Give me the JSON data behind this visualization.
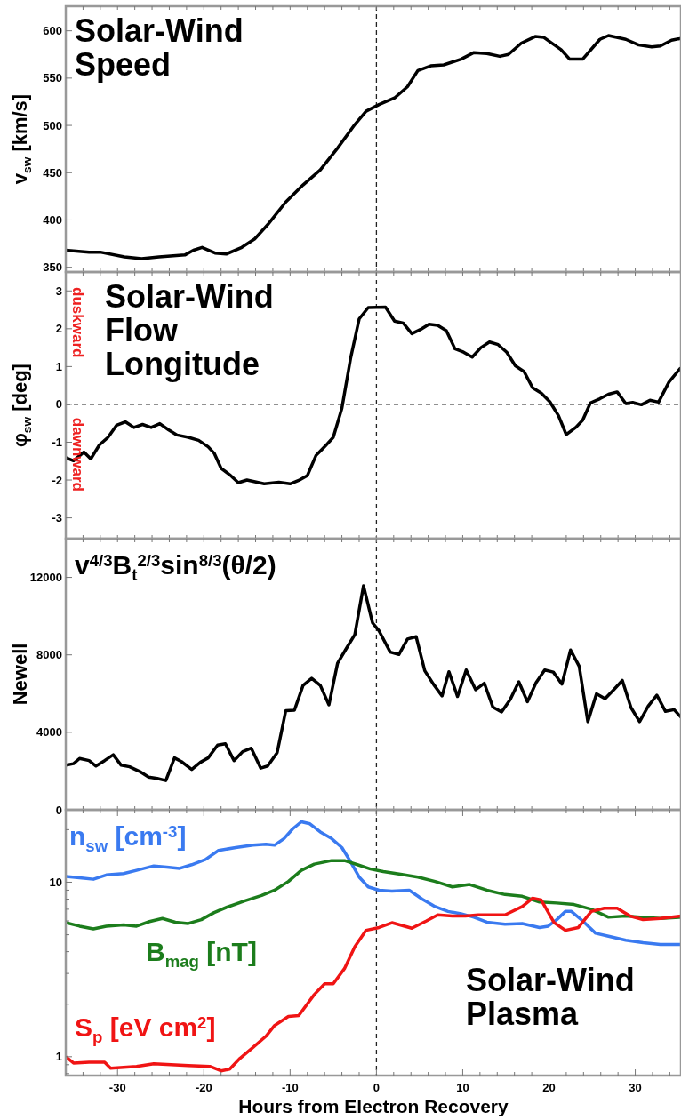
{
  "chart_data": [
    {
      "type": "line",
      "title": "Solar-Wind Speed",
      "ylabel": "v$_{sw}$ [km/s]",
      "tick_labels": "y",
      "xlim": [
        -36,
        35.3
      ],
      "ylim": [
        345,
        626
      ],
      "yticks": [
        350,
        400,
        450,
        500,
        550,
        600
      ],
      "xticks": [
        {
          "value": -34,
          "label": null
        },
        {
          "value": -32,
          "label": null
        },
        {
          "value": -30,
          "label": null
        },
        {
          "value": -28,
          "label": null
        },
        {
          "value": -26,
          "label": null
        },
        {
          "value": -24,
          "label": null
        },
        {
          "value": -22,
          "label": null
        },
        {
          "value": -20,
          "label": null
        },
        {
          "value": -18,
          "label": null
        },
        {
          "value": -16,
          "label": null
        },
        {
          "value": -14,
          "label": null
        },
        {
          "value": -12,
          "label": null
        },
        {
          "value": -10,
          "label": null
        },
        {
          "value": -8,
          "label": null
        },
        {
          "value": -6,
          "label": null
        },
        {
          "value": -4,
          "label": null
        },
        {
          "value": -2,
          "label": null
        },
        {
          "value": 0,
          "label": null
        },
        {
          "value": 2,
          "label": null
        },
        {
          "value": 4,
          "label": null
        },
        {
          "value": 6,
          "label": null
        },
        {
          "value": 8,
          "label": null
        },
        {
          "value": 10,
          "label": null
        },
        {
          "value": 12,
          "label": null
        },
        {
          "value": 14,
          "label": null
        },
        {
          "value": 16,
          "label": null
        },
        {
          "value": 18,
          "label": null
        },
        {
          "value": 20,
          "label": null
        },
        {
          "value": 22,
          "label": null
        },
        {
          "value": 24,
          "label": null
        },
        {
          "value": 26,
          "label": null
        },
        {
          "value": 28,
          "label": null
        },
        {
          "value": 30,
          "label": null
        },
        {
          "value": 32,
          "label": null
        },
        {
          "value": 34,
          "label": null
        }
      ],
      "ref_lines": [
        {
          "axis": "x",
          "value": 0,
          "line_style": "dashed"
        }
      ],
      "series": [
        {
          "color": "#000000",
          "x": [
            -36,
            -33.3,
            -32,
            -29.2,
            -27.2,
            -25.2,
            -22.2,
            -21.2,
            -20.2,
            -18.7,
            -17.4,
            -15.6,
            -14.1,
            -12.6,
            -10.5,
            -8.5,
            -6.5,
            -4.5,
            -2.5,
            -1.2,
            0.3,
            2.1,
            3.6,
            4.8,
            6.3,
            7.8,
            9.8,
            11.3,
            12.8,
            14.3,
            15.3,
            16.8,
            18.4,
            19.4,
            21.4,
            22.4,
            23.9,
            25.9,
            26.9,
            28.9,
            30.4,
            31.9,
            32.9,
            34.2,
            35.3
          ],
          "values": [
            368,
            366,
            366,
            361,
            359,
            361,
            363,
            368,
            371,
            365,
            364,
            371,
            380,
            395,
            419,
            437,
            453,
            476,
            501,
            515,
            522,
            529,
            541,
            558,
            563,
            564,
            570,
            577,
            576,
            573,
            575,
            587,
            594,
            593,
            580,
            570,
            570,
            591,
            595,
            591,
            585,
            583,
            584,
            590,
            592
          ]
        }
      ]
    },
    {
      "type": "line",
      "title": "Solar-Wind Flow Longitude",
      "ylabel": "φ$_{sw}$ [deg]",
      "annotations": [
        "duskward",
        "dawnward"
      ],
      "tick_labels": "y",
      "xlim": [
        -36,
        35.3
      ],
      "ylim": [
        -3.55,
        3.5
      ],
      "yticks": [
        -3,
        -2,
        -1,
        0,
        1,
        2,
        3
      ],
      "xticks": [
        {
          "value": -34,
          "label": null
        },
        {
          "value": -32,
          "label": null
        },
        {
          "value": -30,
          "label": null
        },
        {
          "value": -28,
          "label": null
        },
        {
          "value": -26,
          "label": null
        },
        {
          "value": -24,
          "label": null
        },
        {
          "value": -22,
          "label": null
        },
        {
          "value": -20,
          "label": null
        },
        {
          "value": -18,
          "label": null
        },
        {
          "value": -16,
          "label": null
        },
        {
          "value": -14,
          "label": null
        },
        {
          "value": -12,
          "label": null
        },
        {
          "value": -10,
          "label": null
        },
        {
          "value": -8,
          "label": null
        },
        {
          "value": -6,
          "label": null
        },
        {
          "value": -4,
          "label": null
        },
        {
          "value": -2,
          "label": null
        },
        {
          "value": 0,
          "label": null
        },
        {
          "value": 2,
          "label": null
        },
        {
          "value": 4,
          "label": null
        },
        {
          "value": 6,
          "label": null
        },
        {
          "value": 8,
          "label": null
        },
        {
          "value": 10,
          "label": null
        },
        {
          "value": 12,
          "label": null
        },
        {
          "value": 14,
          "label": null
        },
        {
          "value": 16,
          "label": null
        },
        {
          "value": 18,
          "label": null
        },
        {
          "value": 20,
          "label": null
        },
        {
          "value": 22,
          "label": null
        },
        {
          "value": 24,
          "label": null
        },
        {
          "value": 26,
          "label": null
        },
        {
          "value": 28,
          "label": null
        },
        {
          "value": 30,
          "label": null
        },
        {
          "value": 32,
          "label": null
        },
        {
          "value": 34,
          "label": null
        }
      ],
      "ref_lines": [
        {
          "axis": "x",
          "value": 0,
          "line_style": "dashed"
        },
        {
          "axis": "y",
          "value": 0,
          "line_style": "dashed"
        }
      ],
      "series": [
        {
          "color": "#000000",
          "x": [
            -36,
            -35.1,
            -33.9,
            -33.1,
            -32.1,
            -31.1,
            -30.1,
            -29.1,
            -28.1,
            -27.1,
            -26.1,
            -25.1,
            -24.1,
            -23.1,
            -21.8,
            -20.6,
            -19.5,
            -18.8,
            -18,
            -17,
            -16,
            -15,
            -13,
            -11.3,
            -10,
            -9,
            -8,
            -7,
            -6,
            -5,
            -4,
            -3,
            -2,
            -0.95,
            1.05,
            2.1,
            3.1,
            4.1,
            5.1,
            6.1,
            7.1,
            8.1,
            9.1,
            10.1,
            11.1,
            12.1,
            13.1,
            14.1,
            15.1,
            16.1,
            17.1,
            18.1,
            19.1,
            20.1,
            21.1,
            22,
            23.1,
            23.9,
            24.8,
            25.9,
            26.9,
            27.9,
            28.9,
            29.7,
            30.7,
            31.7,
            32.7,
            33.9,
            35.2
          ],
          "values": [
            -1.41,
            -1.49,
            -1.26,
            -1.44,
            -1.07,
            -0.87,
            -0.55,
            -0.46,
            -0.61,
            -0.53,
            -0.61,
            -0.51,
            -0.67,
            -0.81,
            -0.87,
            -0.95,
            -1.12,
            -1.29,
            -1.69,
            -1.86,
            -2.07,
            -2.0,
            -2.1,
            -2.06,
            -2.1,
            -2.01,
            -1.88,
            -1.35,
            -1.12,
            -0.87,
            -0.1,
            1.21,
            2.26,
            2.56,
            2.57,
            2.2,
            2.15,
            1.87,
            1.98,
            2.12,
            2.09,
            1.95,
            1.47,
            1.38,
            1.25,
            1.5,
            1.65,
            1.58,
            1.38,
            1.02,
            0.87,
            0.44,
            0.3,
            0.07,
            -0.3,
            -0.8,
            -0.61,
            -0.42,
            0.04,
            0.15,
            0.27,
            0.33,
            0.02,
            0.05,
            -0.01,
            0.11,
            0.06,
            0.59,
            0.95
          ]
        }
      ]
    },
    {
      "type": "line",
      "title": "v$^{4/3}$B$_{t}$$^{2/3}$sin$^{8/3}$(θ/2)",
      "ylabel": "Newell",
      "tick_labels": "y",
      "xlim": [
        -36,
        35.3
      ],
      "ylim": [
        0,
        14000
      ],
      "yticks": [
        0,
        4000,
        8000,
        12000
      ],
      "xticks": [
        {
          "value": -34,
          "label": null
        },
        {
          "value": -32,
          "label": null
        },
        {
          "value": -30,
          "label": null
        },
        {
          "value": -28,
          "label": null
        },
        {
          "value": -26,
          "label": null
        },
        {
          "value": -24,
          "label": null
        },
        {
          "value": -22,
          "label": null
        },
        {
          "value": -20,
          "label": null
        },
        {
          "value": -18,
          "label": null
        },
        {
          "value": -16,
          "label": null
        },
        {
          "value": -14,
          "label": null
        },
        {
          "value": -12,
          "label": null
        },
        {
          "value": -10,
          "label": null
        },
        {
          "value": -8,
          "label": null
        },
        {
          "value": -6,
          "label": null
        },
        {
          "value": -4,
          "label": null
        },
        {
          "value": -2,
          "label": null
        },
        {
          "value": 0,
          "label": null
        },
        {
          "value": 2,
          "label": null
        },
        {
          "value": 4,
          "label": null
        },
        {
          "value": 6,
          "label": null
        },
        {
          "value": 8,
          "label": null
        },
        {
          "value": 10,
          "label": null
        },
        {
          "value": 12,
          "label": null
        },
        {
          "value": 14,
          "label": null
        },
        {
          "value": 16,
          "label": null
        },
        {
          "value": 18,
          "label": null
        },
        {
          "value": 20,
          "label": null
        },
        {
          "value": 22,
          "label": null
        },
        {
          "value": 24,
          "label": null
        },
        {
          "value": 26,
          "label": null
        },
        {
          "value": 28,
          "label": null
        },
        {
          "value": 30,
          "label": null
        },
        {
          "value": 32,
          "label": null
        },
        {
          "value": 34,
          "label": null
        }
      ],
      "ref_lines": [
        {
          "axis": "x",
          "value": 0,
          "line_style": "dashed"
        }
      ],
      "series": [
        {
          "color": "#000000",
          "x": [
            -36,
            -35.1,
            -34.4,
            -33.3,
            -32.5,
            -31.5,
            -30.5,
            -29.6,
            -28.6,
            -27.4,
            -26.4,
            -25.4,
            -24.4,
            -23.4,
            -22.6,
            -21.4,
            -20.4,
            -19.5,
            -18.4,
            -17.5,
            -16.5,
            -15.5,
            -14.5,
            -13.4,
            -12.6,
            -11.5,
            -10.5,
            -9.5,
            -8.5,
            -7.5,
            -6.5,
            -5.5,
            -4.5,
            -3.5,
            -2.5,
            -1.5,
            -0.45,
            0.3,
            1.6,
            2.6,
            3.6,
            4.6,
            5.6,
            6.6,
            7.6,
            8.4,
            9.4,
            10.4,
            11.5,
            12.5,
            13.5,
            14.5,
            15.5,
            16.5,
            17.5,
            18.5,
            19.5,
            20.5,
            21.5,
            22.5,
            23.5,
            24.5,
            25.5,
            26.5,
            27.5,
            28.5,
            29.5,
            30.5,
            31.5,
            32.5,
            33.5,
            34.5,
            35.3
          ],
          "values": [
            2300,
            2380,
            2650,
            2540,
            2260,
            2540,
            2840,
            2310,
            2220,
            1970,
            1690,
            1620,
            1510,
            2680,
            2490,
            2080,
            2450,
            2680,
            3340,
            3410,
            2540,
            3000,
            3180,
            2150,
            2260,
            2950,
            5120,
            5140,
            6420,
            6790,
            6420,
            5420,
            7570,
            8320,
            9050,
            11570,
            9650,
            9240,
            8140,
            8020,
            8820,
            8940,
            7180,
            6490,
            5880,
            7130,
            5850,
            7220,
            6200,
            6540,
            5300,
            5050,
            5690,
            6610,
            5580,
            6560,
            7220,
            7110,
            6490,
            8250,
            7410,
            4550,
            5990,
            5740,
            6200,
            6680,
            5280,
            4550,
            5350,
            5920,
            5080,
            5170,
            4780
          ]
        }
      ]
    },
    {
      "type": "line",
      "title": "Solar-Wind Plasma",
      "xlabel": "Hours from Electron Recovery",
      "log": true,
      "xlim": [
        -36,
        35.3
      ],
      "ylim": [
        0.78,
        26
      ],
      "yticks": [
        {
          "value": 0.8,
          "label": null
        },
        {
          "value": 0.9,
          "label": null
        },
        1,
        {
          "value": 2,
          "label": null
        },
        {
          "value": 3,
          "label": null
        },
        {
          "value": 4,
          "label": null
        },
        {
          "value": 5,
          "label": null
        },
        {
          "value": 6,
          "label": null
        },
        {
          "value": 7,
          "label": null
        },
        {
          "value": 8,
          "label": null
        },
        {
          "value": 9,
          "label": null
        },
        10,
        {
          "value": 20,
          "label": null
        }
      ],
      "xticks": [
        {
          "value": -34,
          "label": null
        },
        {
          "value": -32,
          "label": null
        },
        {
          "value": -30,
          "label": "-30"
        },
        {
          "value": -28,
          "label": null
        },
        {
          "value": -26,
          "label": null
        },
        {
          "value": -24,
          "label": null
        },
        {
          "value": -22,
          "label": null
        },
        {
          "value": -20,
          "label": "-20"
        },
        {
          "value": -18,
          "label": null
        },
        {
          "value": -16,
          "label": null
        },
        {
          "value": -14,
          "label": null
        },
        {
          "value": -12,
          "label": null
        },
        {
          "value": -10,
          "label": "-10"
        },
        {
          "value": -8,
          "label": null
        },
        {
          "value": -6,
          "label": null
        },
        {
          "value": -4,
          "label": null
        },
        {
          "value": -2,
          "label": null
        },
        {
          "value": 0,
          "label": "0"
        },
        {
          "value": 2,
          "label": null
        },
        {
          "value": 4,
          "label": null
        },
        {
          "value": 6,
          "label": null
        },
        {
          "value": 8,
          "label": null
        },
        {
          "value": 10,
          "label": "10"
        },
        {
          "value": 12,
          "label": null
        },
        {
          "value": 14,
          "label": null
        },
        {
          "value": 16,
          "label": null
        },
        {
          "value": 18,
          "label": null
        },
        {
          "value": 20,
          "label": "20"
        },
        {
          "value": 22,
          "label": null
        },
        {
          "value": 24,
          "label": null
        },
        {
          "value": 26,
          "label": null
        },
        {
          "value": 28,
          "label": null
        },
        {
          "value": 30,
          "label": "30"
        },
        {
          "value": 32,
          "label": null
        },
        {
          "value": 34,
          "label": null
        }
      ],
      "ref_lines": [
        {
          "axis": "x",
          "value": 0,
          "line_style": "dashed"
        }
      ],
      "series": [
        {
          "name": "n$_{sw}$ [cm$^{-3}$]",
          "color": "#3a7af0",
          "x": [
            -36,
            -34.4,
            -32.8,
            -31.3,
            -29.3,
            -27.8,
            -25.8,
            -24.3,
            -22.8,
            -21.4,
            -19.8,
            -18.3,
            -16.3,
            -14.3,
            -12.8,
            -11.8,
            -10.7,
            -9.7,
            -8.7,
            -7.7,
            -6.5,
            -5.2,
            -4,
            -3,
            -2,
            -0.95,
            0.3,
            1.8,
            3.8,
            5.3,
            6.8,
            8.3,
            9.8,
            11.3,
            12.8,
            14.9,
            16.9,
            18.9,
            19.9,
            20.9,
            21.9,
            22.6,
            23.9,
            25.4,
            26.9,
            28.9,
            30.9,
            32.9,
            35.3
          ],
          "values": [
            10.8,
            10.6,
            10.4,
            11.0,
            11.2,
            11.7,
            12.4,
            12.2,
            12.0,
            12.6,
            13.5,
            15.2,
            15.8,
            16.3,
            16.5,
            16.3,
            17.8,
            20.2,
            22.2,
            21.6,
            19.4,
            17.8,
            15.8,
            13.1,
            10.7,
            9.4,
            9.0,
            8.9,
            9.0,
            8.0,
            7.25,
            6.8,
            6.6,
            6.3,
            5.9,
            5.75,
            5.8,
            5.5,
            5.6,
            6.1,
            6.8,
            6.8,
            6.0,
            5.1,
            4.9,
            4.65,
            4.5,
            4.4,
            4.4
          ]
        },
        {
          "name": "B$_{mag}$ [nT]",
          "color": "#1c7d1c",
          "x": [
            -36,
            -34.4,
            -32.8,
            -31.3,
            -29.3,
            -27.8,
            -26.3,
            -24.8,
            -23.3,
            -21.8,
            -20.3,
            -18.8,
            -17.3,
            -15.3,
            -13.3,
            -11.8,
            -10.2,
            -8.7,
            -7.2,
            -5.2,
            -3.7,
            -2.2,
            -0.7,
            0.8,
            2.8,
            4.8,
            6.8,
            8.8,
            10.8,
            12.8,
            14.9,
            16.9,
            18.9,
            20.9,
            22.9,
            24.9,
            26.9,
            28.9,
            30.9,
            32.9,
            35.3
          ],
          "values": [
            5.86,
            5.6,
            5.4,
            5.6,
            5.7,
            5.6,
            5.95,
            6.2,
            5.9,
            5.8,
            6.1,
            6.7,
            7.2,
            7.8,
            8.4,
            9.0,
            10.1,
            11.7,
            12.7,
            13.3,
            13.3,
            12.6,
            11.9,
            11.5,
            11.1,
            10.7,
            10.1,
            9.4,
            9.7,
            9.0,
            8.5,
            8.3,
            7.7,
            7.6,
            7.45,
            7.0,
            6.3,
            6.4,
            6.3,
            6.2,
            6.3
          ]
        },
        {
          "name": "S$_{p}$ [eV cm$^{2}$]",
          "color": "#f01414",
          "x": [
            -36,
            -35.1,
            -33.3,
            -31.5,
            -30.8,
            -29.3,
            -27.8,
            -25.8,
            -23.8,
            -21.8,
            -19.3,
            -18,
            -17,
            -15.8,
            -14.3,
            -12.8,
            -11.8,
            -10.2,
            -9,
            -7.2,
            -6,
            -5,
            -3.7,
            -2.5,
            -1.2,
            0.3,
            1.8,
            4.1,
            5.8,
            7.1,
            8.8,
            10.3,
            11.8,
            14.9,
            16.9,
            18.1,
            19.1,
            20.6,
            21.9,
            23.4,
            24.9,
            26.4,
            27.9,
            29.4,
            30.9,
            32.9,
            35.3
          ],
          "values": [
            1.0,
            0.92,
            0.93,
            0.93,
            0.86,
            0.87,
            0.88,
            0.91,
            0.9,
            0.89,
            0.88,
            0.83,
            0.85,
            0.98,
            1.13,
            1.31,
            1.51,
            1.7,
            1.72,
            2.27,
            2.62,
            2.62,
            3.2,
            4.27,
            5.3,
            5.5,
            5.86,
            5.45,
            6.0,
            6.5,
            6.4,
            6.4,
            6.5,
            6.5,
            7.25,
            8.1,
            7.9,
            5.86,
            5.3,
            5.5,
            6.8,
            7.1,
            7.1,
            6.4,
            6.1,
            6.2,
            6.4
          ]
        }
      ]
    }
  ]
}
